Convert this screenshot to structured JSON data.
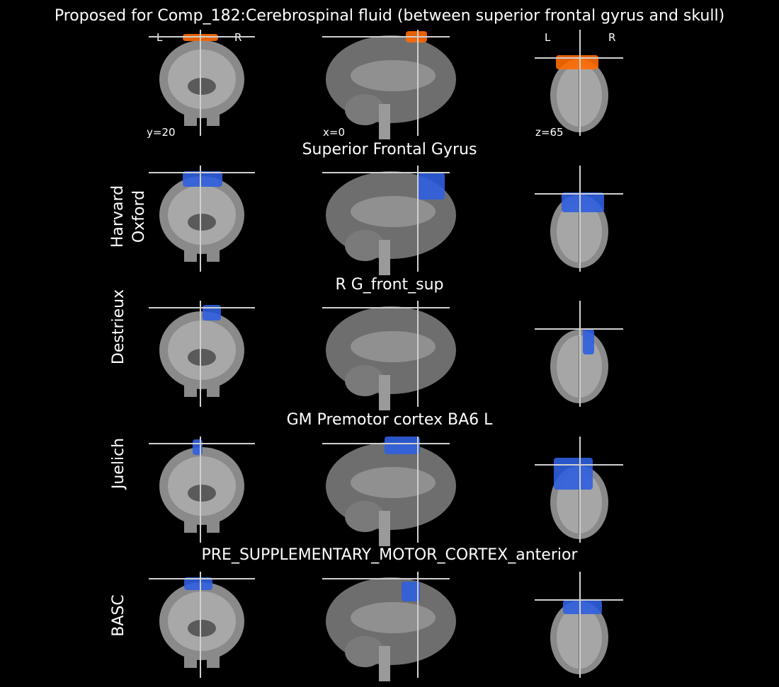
{
  "title": "Proposed for Comp_182:Cerebrospinal fluid (between superior frontal gyrus and skull)",
  "colors": {
    "background": "#000000",
    "overlay_atlas": "#2f5fe0",
    "overlay_component": "#ff6a00",
    "crosshair": "#d0d0d0"
  },
  "cut_labels": {
    "coronal": "y=20",
    "sagittal": "x=0",
    "axial": "z=65"
  },
  "orientation": {
    "left": "L",
    "right": "R"
  },
  "rows": [
    {
      "atlas": "",
      "region": ""
    },
    {
      "atlas": "Harvard\nOxford",
      "region": "Superior Frontal Gyrus"
    },
    {
      "atlas": "Destrieux",
      "region": "R G_front_sup"
    },
    {
      "atlas": "Juelich",
      "region": "GM Premotor cortex BA6 L"
    },
    {
      "atlas": "BASC",
      "region": "PRE_SUPPLEMENTARY_MOTOR_CORTEX_anterior"
    }
  ]
}
